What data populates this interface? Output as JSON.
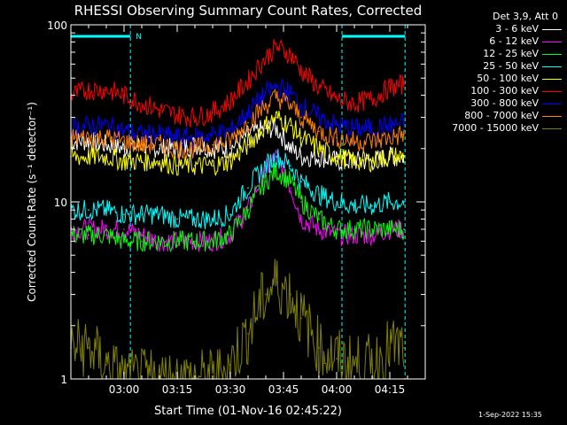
{
  "chart_data": {
    "type": "line",
    "title": "RHESSI Observing Summary Count Rates, Corrected",
    "xlabel": "Start Time (01-Nov-16 02:45:22)",
    "ylabel": "Corrected Count Rate (s⁻¹ detector⁻¹)",
    "yscale": "log",
    "ylim": [
      1,
      100
    ],
    "y_ticks": [
      {
        "value": 1,
        "label": "1"
      },
      {
        "value": 10,
        "label": "10"
      },
      {
        "value": 100,
        "label": "100"
      }
    ],
    "x_ticks": [
      {
        "value": 15,
        "label": "03:00"
      },
      {
        "value": 30,
        "label": "03:15"
      },
      {
        "value": 45,
        "label": "03:30"
      },
      {
        "value": 60,
        "label": "03:45"
      },
      {
        "value": 75,
        "label": "04:00"
      },
      {
        "value": 90,
        "label": "04:15"
      }
    ],
    "x_unit": "minutes since 02:45:22",
    "xlim": [
      0,
      100
    ],
    "legend_header": "Det 3,9, Att 0",
    "legend_position": "right",
    "night_marker": "N",
    "night_intervals": [
      [
        0,
        16.8
      ],
      [
        76.5,
        94.3
      ]
    ],
    "series": [
      {
        "name": "3 - 6 keV",
        "color": "#ffffff",
        "x": [
          0,
          5,
          10,
          15,
          20,
          25,
          30,
          35,
          40,
          45,
          50,
          55,
          58,
          62,
          65,
          70,
          75,
          80,
          85,
          90,
          94
        ],
        "y": [
          22,
          22,
          21,
          20,
          21,
          20,
          20,
          21,
          20,
          20,
          24,
          26,
          26,
          20,
          18,
          18,
          17,
          17,
          17,
          18,
          18
        ]
      },
      {
        "name": "6 - 12 keV",
        "color": "#ff00ff",
        "x": [
          0,
          5,
          10,
          15,
          20,
          25,
          30,
          35,
          40,
          45,
          50,
          55,
          58,
          62,
          65,
          70,
          75,
          80,
          85,
          90,
          94
        ],
        "y": [
          7,
          7,
          7,
          7,
          6.5,
          6,
          6,
          6,
          6,
          6.5,
          9,
          15,
          18,
          12,
          8,
          7,
          6.5,
          6.5,
          6.5,
          7,
          7
        ]
      },
      {
        "name": "12 - 25 keV",
        "color": "#00ff00",
        "x": [
          0,
          5,
          10,
          15,
          20,
          25,
          30,
          35,
          40,
          45,
          50,
          55,
          58,
          62,
          65,
          70,
          75,
          80,
          85,
          90,
          94
        ],
        "y": [
          6.5,
          6.5,
          6.5,
          6,
          6,
          6,
          6,
          6,
          6,
          6.5,
          9,
          13,
          15,
          13,
          10,
          8,
          7,
          7,
          7,
          7,
          7
        ]
      },
      {
        "name": "25 - 50 keV",
        "color": "#00ffff",
        "x": [
          0,
          5,
          10,
          15,
          20,
          25,
          30,
          35,
          40,
          45,
          50,
          55,
          58,
          62,
          65,
          70,
          75,
          80,
          85,
          90,
          94
        ],
        "y": [
          9,
          9,
          9,
          8.5,
          8.5,
          8.5,
          8,
          8,
          8,
          8.5,
          12,
          16,
          18,
          16,
          13,
          11,
          10,
          9.5,
          9.5,
          10,
          10
        ]
      },
      {
        "name": "50 - 100 keV",
        "color": "#ffff00",
        "x": [
          0,
          5,
          10,
          15,
          20,
          25,
          30,
          35,
          40,
          45,
          50,
          55,
          58,
          62,
          65,
          70,
          75,
          80,
          85,
          90,
          94
        ],
        "y": [
          18,
          18,
          18,
          17,
          17,
          17,
          16,
          16,
          16,
          17,
          21,
          27,
          30,
          27,
          23,
          20,
          18,
          17,
          17,
          18,
          18
        ]
      },
      {
        "name": "100 - 300 keV",
        "color": "#ff0000",
        "x": [
          0,
          5,
          10,
          15,
          20,
          25,
          30,
          35,
          40,
          45,
          50,
          55,
          58,
          62,
          65,
          70,
          75,
          80,
          85,
          90,
          94
        ],
        "y": [
          40,
          43,
          43,
          40,
          36,
          33,
          31,
          30,
          32,
          37,
          48,
          65,
          75,
          68,
          55,
          44,
          38,
          36,
          38,
          44,
          46
        ]
      },
      {
        "name": "300 - 800 keV",
        "color": "#0000ff",
        "x": [
          0,
          5,
          10,
          15,
          20,
          25,
          30,
          35,
          40,
          45,
          50,
          55,
          58,
          62,
          65,
          70,
          75,
          80,
          85,
          90,
          94
        ],
        "y": [
          26,
          27,
          27,
          25,
          24,
          24,
          23,
          23,
          24,
          25,
          32,
          41,
          45,
          41,
          35,
          30,
          27,
          26,
          26,
          27,
          28
        ]
      },
      {
        "name": "800 - 7000 keV",
        "color": "#ff8000",
        "x": [
          0,
          5,
          10,
          15,
          20,
          25,
          30,
          35,
          40,
          45,
          50,
          55,
          58,
          62,
          65,
          70,
          75,
          80,
          85,
          90,
          94
        ],
        "y": [
          23,
          23,
          23,
          22,
          21,
          21,
          20,
          20,
          21,
          22,
          28,
          35,
          39,
          35,
          30,
          25,
          23,
          22,
          22,
          23,
          24
        ]
      },
      {
        "name": "7000 - 15000 keV",
        "color": "#808000",
        "x": [
          0,
          5,
          10,
          15,
          20,
          25,
          30,
          35,
          40,
          45,
          50,
          55,
          58,
          62,
          65,
          70,
          75,
          80,
          85,
          90,
          94
        ],
        "y": [
          1.5,
          1.5,
          1.2,
          1,
          1,
          1,
          1,
          1,
          1,
          1.2,
          1.8,
          3,
          3.5,
          3,
          2.2,
          1.5,
          1.3,
          1.2,
          1.2,
          1.5,
          1.5
        ]
      }
    ]
  },
  "footer_stamp": "1-Sep-2022 15:35"
}
